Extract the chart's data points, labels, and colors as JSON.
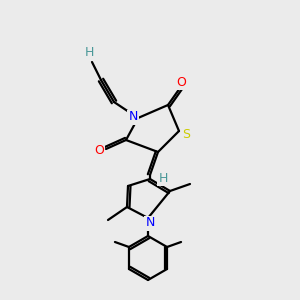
{
  "bg_color": "#ebebeb",
  "atom_colors": {
    "C": "#000000",
    "H": "#4a9898",
    "N": "#0000ff",
    "O": "#ff0000",
    "S": "#cccc00"
  },
  "figsize": [
    3.0,
    3.0
  ],
  "dpi": 100
}
